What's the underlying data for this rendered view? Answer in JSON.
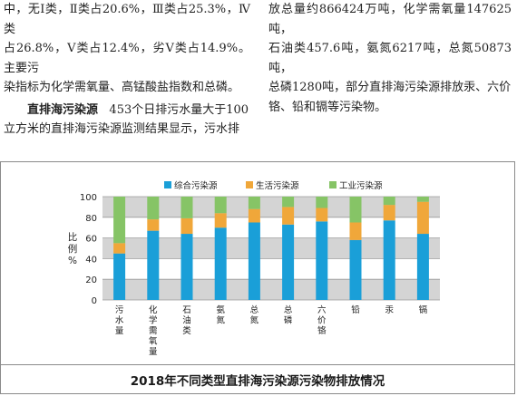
{
  "article": {
    "left_line1": "中，无Ⅰ类，Ⅱ类占20.6%，Ⅲ类占25.3%，Ⅳ类",
    "left_line2": "占26.8%，Ⅴ类占12.4%，劣Ⅴ类占14.9%。主要污",
    "left_line3": "染指标为化学需氧量、高锰酸盐指数和总磷。",
    "section_heading": "直排海污染源",
    "section_line1_rest": "453个日排污水量大于100",
    "section_line2": "立方米的直排海污染源监测结果显示，污水排",
    "right_line1": "放总量约866424万吨，化学需氧量147625吨，",
    "right_line2": "石油类457.6吨，氨氮6217吨，总氮50873吨，",
    "right_line3": "总磷1280吨，部分直排海污染源排放汞、六价",
    "right_line4": "铬、铅和镉等污染物。"
  },
  "figure_title": "2018年不同类型直排海污染源污染物排放情况",
  "chart_data": {
    "type": "bar",
    "stacked": true,
    "categories": [
      "污水量",
      "化学需氧量",
      "石油类",
      "氨氮",
      "总氮",
      "总磷",
      "六价铬",
      "铅",
      "汞",
      "镉"
    ],
    "series": [
      {
        "name": "综合污染源",
        "color": "#1a9fd8",
        "values": [
          45,
          67,
          64,
          70,
          75,
          73,
          76,
          58,
          77,
          64
        ]
      },
      {
        "name": "生活污染源",
        "color": "#f0a73a",
        "values": [
          10,
          11,
          15,
          14,
          13,
          17,
          13,
          17,
          15,
          31
        ]
      },
      {
        "name": "工业污染源",
        "color": "#86c466",
        "values": [
          45,
          22,
          21,
          16,
          12,
          10,
          11,
          25,
          8,
          5
        ]
      }
    ],
    "ylabel": "比例%",
    "ylabel_chars": [
      "比",
      "例",
      "%"
    ],
    "yticks": [
      0,
      20,
      40,
      60,
      80,
      100
    ],
    "ylim": [
      0,
      100
    ],
    "legend_position": "top",
    "grid": "alternating horizontal bands"
  }
}
